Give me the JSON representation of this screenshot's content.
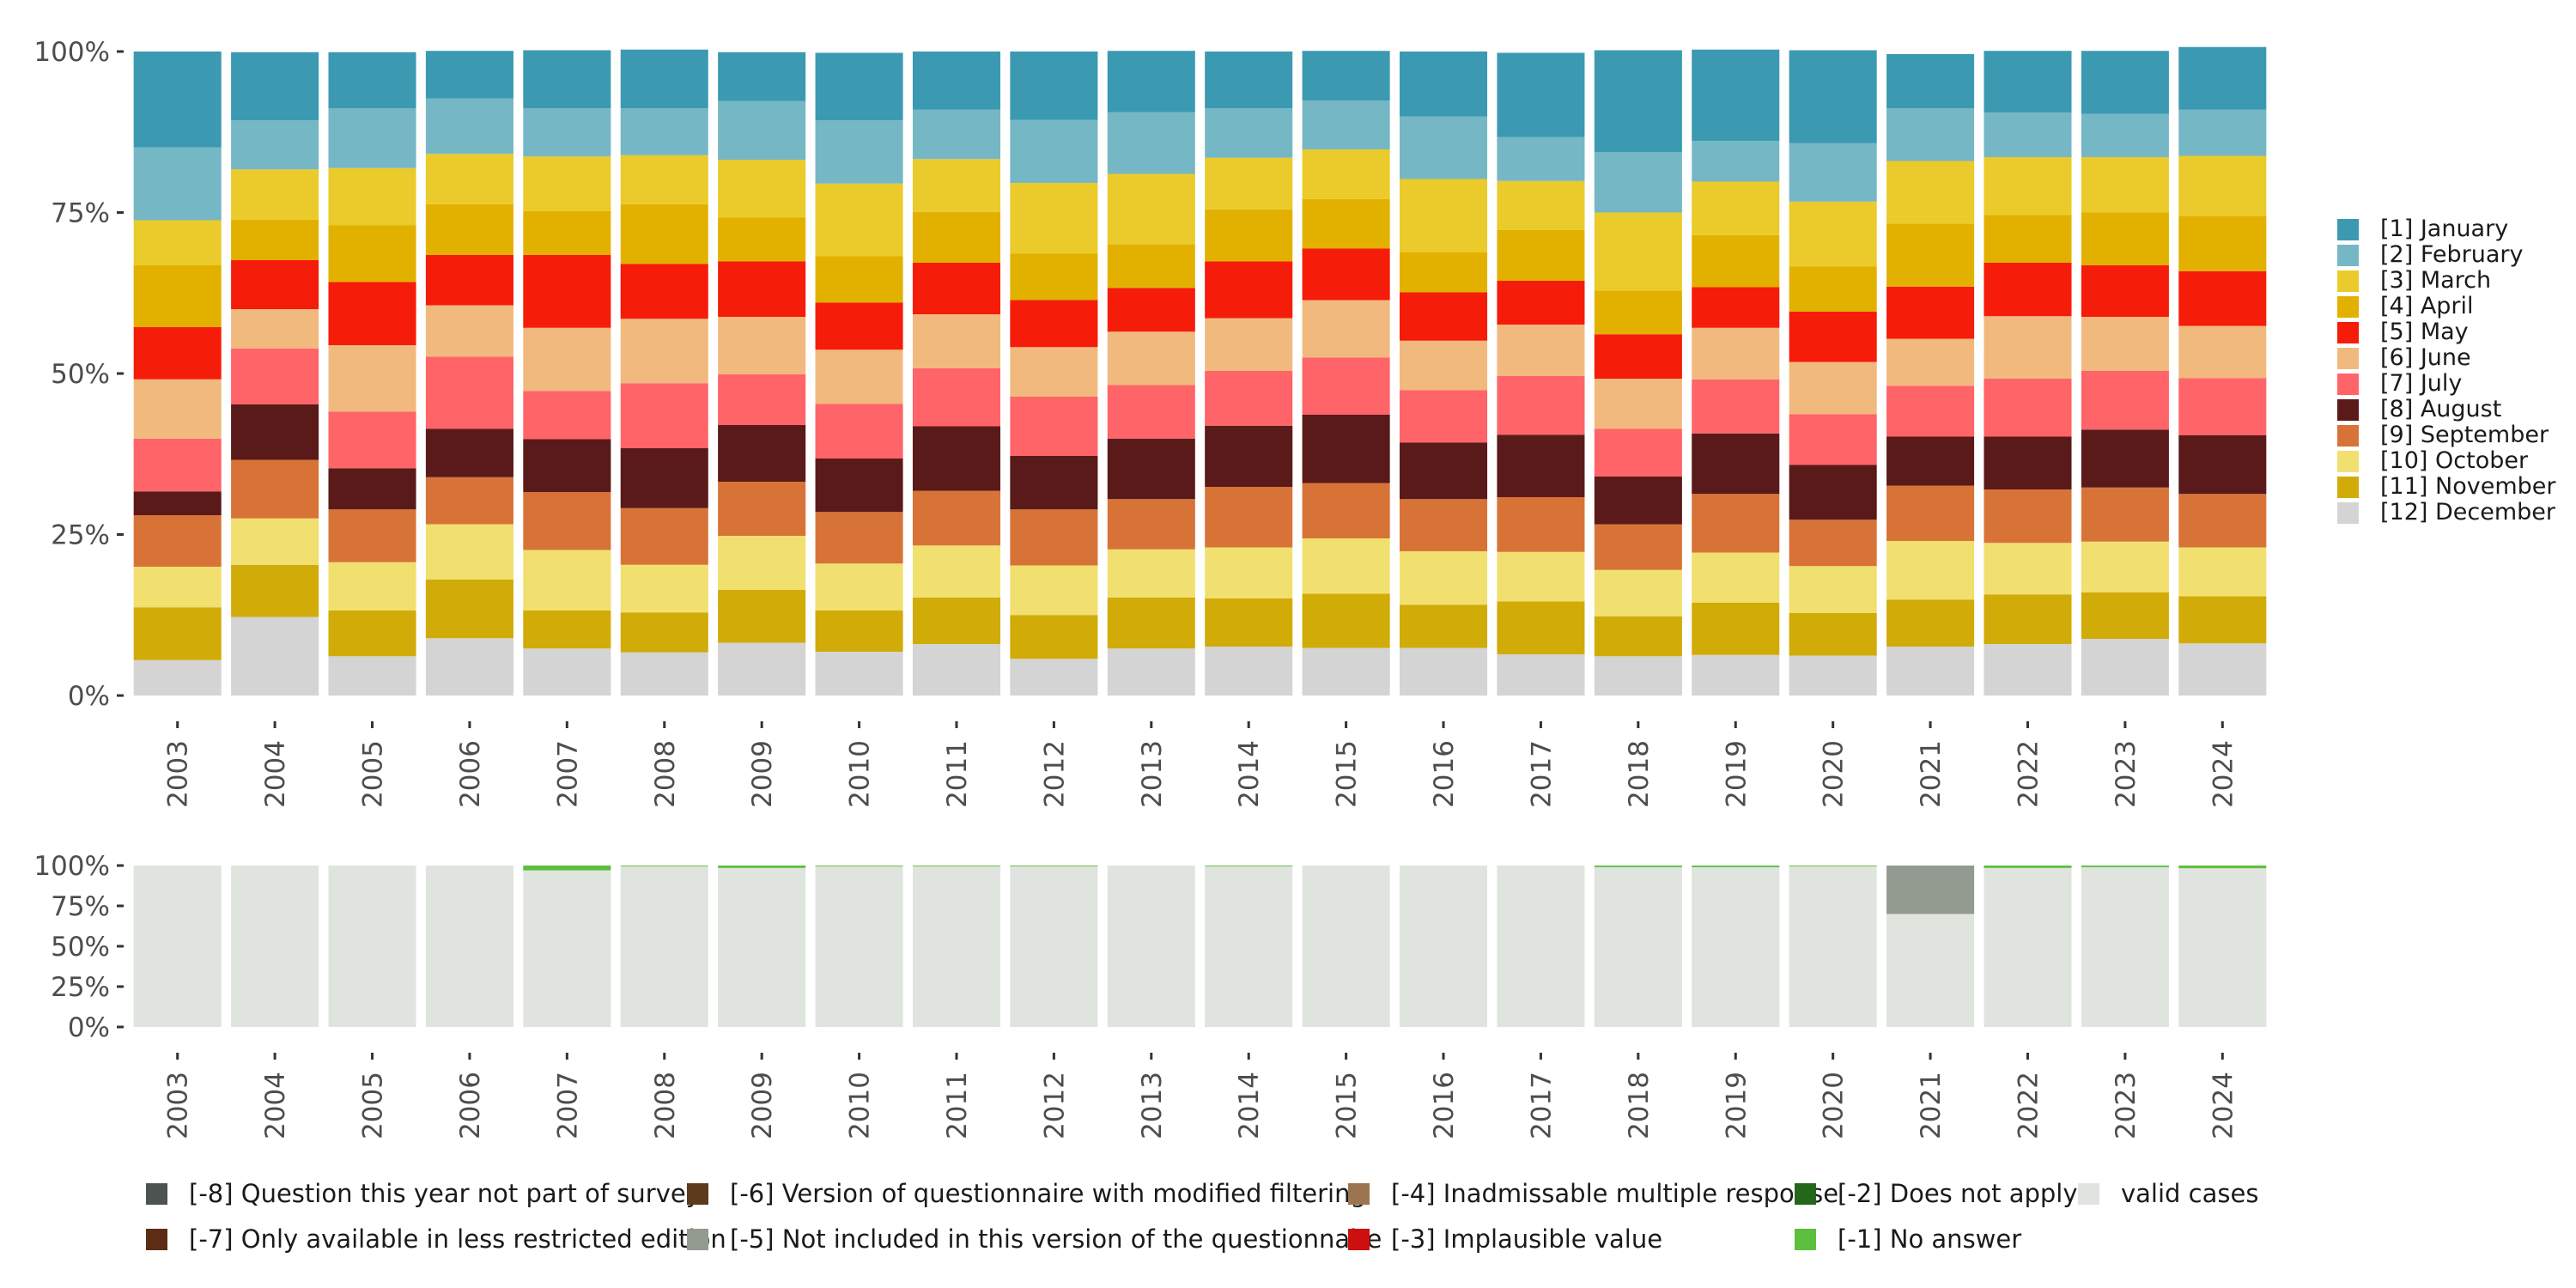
{
  "chart_data": [
    {
      "type": "bar",
      "stacked": true,
      "title": "",
      "xlabel": "",
      "ylabel": "",
      "ylim": [
        0,
        100
      ],
      "y_ticks": [
        "0%",
        "25%",
        "50%",
        "75%",
        "100%"
      ],
      "categories": [
        "2003",
        "2004",
        "2005",
        "2006",
        "2007",
        "2008",
        "2009",
        "2010",
        "2011",
        "2012",
        "2013",
        "2014",
        "2015",
        "2016",
        "2017",
        "2018",
        "2019",
        "2020",
        "2021",
        "2022",
        "2023",
        "2024"
      ],
      "legend_position": "right",
      "series": [
        {
          "name": "[12] December",
          "color": "#d4d4d4",
          "values": [
            5.5,
            12.2,
            6.1,
            8.9,
            7.3,
            6.7,
            8.2,
            6.8,
            8.0,
            5.7,
            7.3,
            7.6,
            7.4,
            7.4,
            6.4,
            6.1,
            6.3,
            6.2,
            7.6,
            8.0,
            8.8,
            8.1
          ]
        },
        {
          "name": "[11] November",
          "color": "#d1ab08",
          "values": [
            8.2,
            8.1,
            7.1,
            9.1,
            5.9,
            6.2,
            8.2,
            6.4,
            7.2,
            6.8,
            7.9,
            7.5,
            8.4,
            6.7,
            8.2,
            6.2,
            8.1,
            6.6,
            7.3,
            7.7,
            7.2,
            7.3
          ]
        },
        {
          "name": "[10] October",
          "color": "#f1e06f",
          "values": [
            6.3,
            7.2,
            7.5,
            8.6,
            9.4,
            7.4,
            8.4,
            7.3,
            8.1,
            7.7,
            7.5,
            7.9,
            8.6,
            8.3,
            7.7,
            7.2,
            7.8,
            7.3,
            9.1,
            8.0,
            7.9,
            7.6
          ]
        },
        {
          "name": "[9] September",
          "color": "#d87338",
          "values": [
            8.0,
            9.1,
            8.2,
            7.3,
            9.0,
            8.8,
            8.4,
            8.0,
            8.5,
            8.7,
            7.8,
            9.4,
            8.6,
            8.1,
            8.5,
            7.1,
            9.1,
            7.2,
            8.6,
            8.3,
            8.4,
            8.3
          ]
        },
        {
          "name": "[8] August",
          "color": "#5a1a1a",
          "values": [
            3.7,
            8.6,
            6.4,
            7.5,
            8.2,
            9.3,
            8.8,
            8.3,
            10.0,
            8.3,
            9.4,
            9.5,
            10.6,
            8.8,
            9.7,
            7.4,
            9.4,
            8.5,
            7.6,
            8.2,
            9.0,
            9.1
          ]
        },
        {
          "name": "[7] July",
          "color": "#ff6469",
          "values": [
            8.2,
            8.7,
            8.8,
            11.2,
            7.5,
            10.1,
            7.9,
            8.5,
            9.0,
            9.2,
            8.3,
            8.5,
            8.9,
            8.1,
            9.1,
            7.4,
            8.4,
            7.9,
            7.9,
            9.0,
            9.1,
            8.9
          ]
        },
        {
          "name": "[6] June",
          "color": "#f2b97f",
          "values": [
            9.2,
            6.1,
            10.3,
            8.0,
            9.8,
            10.0,
            8.9,
            8.4,
            8.4,
            7.7,
            8.3,
            8.2,
            8.9,
            7.7,
            8.0,
            7.8,
            8.0,
            8.1,
            7.3,
            9.7,
            8.4,
            8.1
          ]
        },
        {
          "name": "[5] May",
          "color": "#f51c0a",
          "values": [
            8.1,
            7.6,
            9.8,
            7.8,
            11.3,
            8.5,
            8.6,
            7.3,
            8.0,
            7.3,
            6.8,
            8.8,
            8.0,
            7.5,
            6.8,
            6.9,
            6.3,
            7.8,
            8.1,
            8.3,
            8.0,
            8.5
          ]
        },
        {
          "name": "[4] April",
          "color": "#e2b100",
          "values": [
            9.6,
            6.3,
            8.8,
            7.9,
            6.8,
            9.3,
            6.8,
            7.2,
            7.9,
            7.2,
            6.8,
            8.1,
            7.7,
            6.2,
            7.9,
            6.8,
            8.1,
            7.0,
            9.8,
            7.4,
            8.2,
            8.6
          ]
        },
        {
          "name": "[3] March",
          "color": "#eacb2b",
          "values": [
            7.0,
            7.8,
            8.9,
            7.8,
            8.5,
            7.6,
            9.0,
            11.3,
            8.2,
            11.0,
            10.9,
            8.0,
            7.7,
            11.4,
            7.6,
            12.1,
            8.3,
            10.1,
            9.7,
            9.0,
            8.6,
            9.3
          ]
        },
        {
          "name": "[2] February",
          "color": "#76b7c5",
          "values": [
            11.3,
            7.6,
            9.3,
            8.6,
            7.5,
            7.3,
            9.1,
            9.8,
            7.7,
            9.8,
            9.6,
            7.7,
            7.6,
            9.7,
            6.8,
            9.4,
            6.3,
            9.1,
            8.2,
            6.9,
            6.7,
            7.2
          ]
        },
        {
          "name": "[1] January",
          "color": "#3b9ab2",
          "values": [
            14.9,
            10.6,
            8.7,
            7.4,
            9.0,
            9.1,
            7.6,
            10.5,
            9.0,
            10.6,
            9.5,
            8.8,
            7.7,
            10.1,
            13.1,
            15.8,
            14.2,
            14.4,
            8.4,
            9.6,
            9.8,
            9.7
          ]
        }
      ]
    },
    {
      "type": "bar",
      "stacked": true,
      "title": "",
      "xlabel": "",
      "ylabel": "",
      "ylim": [
        0,
        100
      ],
      "y_ticks": [
        "0%",
        "25%",
        "50%",
        "75%",
        "100%"
      ],
      "categories": [
        "2003",
        "2004",
        "2005",
        "2006",
        "2007",
        "2008",
        "2009",
        "2010",
        "2011",
        "2012",
        "2013",
        "2014",
        "2015",
        "2016",
        "2017",
        "2018",
        "2019",
        "2020",
        "2021",
        "2022",
        "2023",
        "2024"
      ],
      "legend_position": "bottom",
      "series": [
        {
          "name": "valid cases",
          "color": "#e0e4df",
          "values": [
            100,
            100,
            100,
            100,
            97,
            99.5,
            98.5,
            99.5,
            99.5,
            99.5,
            100,
            99.5,
            100,
            100,
            100,
            99,
            99,
            99.5,
            70,
            98.5,
            99,
            98.3
          ]
        },
        {
          "name": "[-5] Not included in this version of the questionnaire",
          "color": "#939a8f",
          "values": [
            0,
            0,
            0,
            0,
            0,
            0,
            0,
            0,
            0,
            0,
            0,
            0,
            0,
            0,
            0,
            0,
            0,
            0,
            30,
            0,
            0,
            0
          ]
        },
        {
          "name": "[-1] No answer",
          "color": "#5cbf3d",
          "values": [
            0,
            0,
            0,
            0,
            3,
            0.5,
            1.5,
            0.5,
            0.5,
            0.5,
            0,
            0.5,
            0,
            0,
            0,
            1,
            1,
            0.5,
            0,
            1.5,
            1,
            1.7
          ]
        }
      ]
    }
  ],
  "status_legend": [
    {
      "name": "[-8] Question this year not part of survey",
      "color": "#4d5350"
    },
    {
      "name": "[-7] Only available in less restricted edition",
      "color": "#5a2d14"
    },
    {
      "name": "[-6] Version of questionnaire with modified filtering",
      "color": "#5c3a1c"
    },
    {
      "name": "[-5] Not included in this version of the questionnaire",
      "color": "#939a8f"
    },
    {
      "name": "[-4] Inadmissable multiple response",
      "color": "#9c7450"
    },
    {
      "name": "[-3] Implausible value",
      "color": "#cc0f0f"
    },
    {
      "name": "[-2] Does not apply",
      "color": "#24671a"
    },
    {
      "name": "[-1] No answer",
      "color": "#5cbf3d"
    },
    {
      "name": "valid cases",
      "color": "#e0e4df"
    }
  ]
}
